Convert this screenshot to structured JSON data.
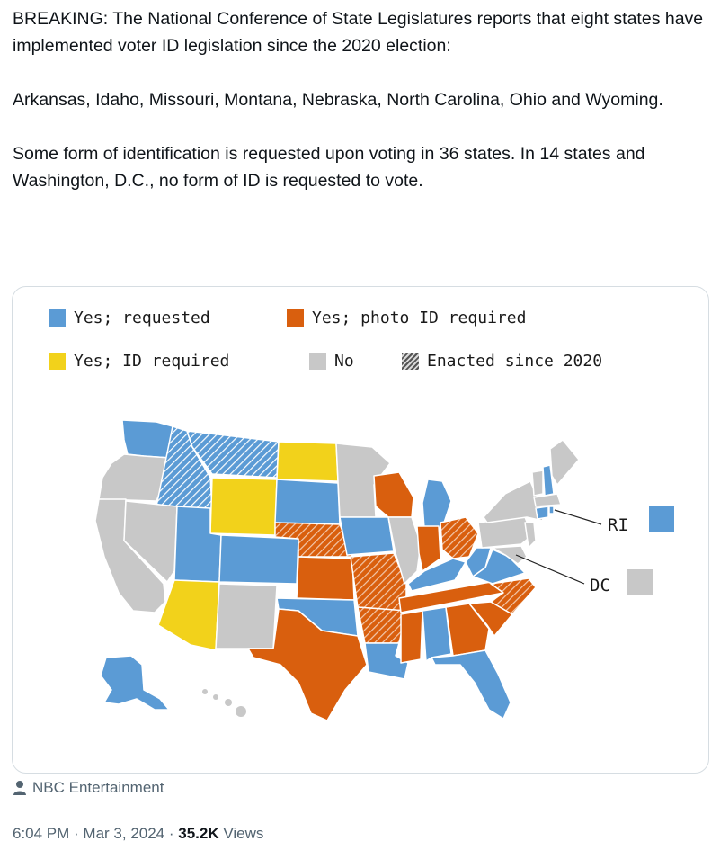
{
  "tweet": {
    "paragraphs": [
      "BREAKING: The National Conference of State Legislatures reports that eight states have implemented voter ID legislation since the 2020 election:",
      "Arkansas, Idaho, Missouri, Montana, Nebraska, North Carolina, Ohio and Wyoming.",
      "Some form of identification is requested upon voting in 36 states. In 14 states and Washington, D.C., no form of ID is requested to vote."
    ]
  },
  "map": {
    "legend": {
      "requested": "Yes; requested",
      "photo": "Yes; photo ID required",
      "id_required": "Yes; ID required",
      "no": "No",
      "enacted": "Enacted since 2020"
    },
    "callouts": {
      "ri": "RI",
      "dc": "DC"
    },
    "colors": {
      "requested": "#5b9bd5",
      "photo": "#d95f0e",
      "id_required": "#f2d21b",
      "no": "#c8c8c8"
    }
  },
  "source": {
    "icon": "person-icon",
    "label": "NBC Entertainment"
  },
  "meta": {
    "time": "6:04 PM · Mar 3, 2024 · ",
    "views_count": "35.2K",
    "views_label": " Views"
  }
}
